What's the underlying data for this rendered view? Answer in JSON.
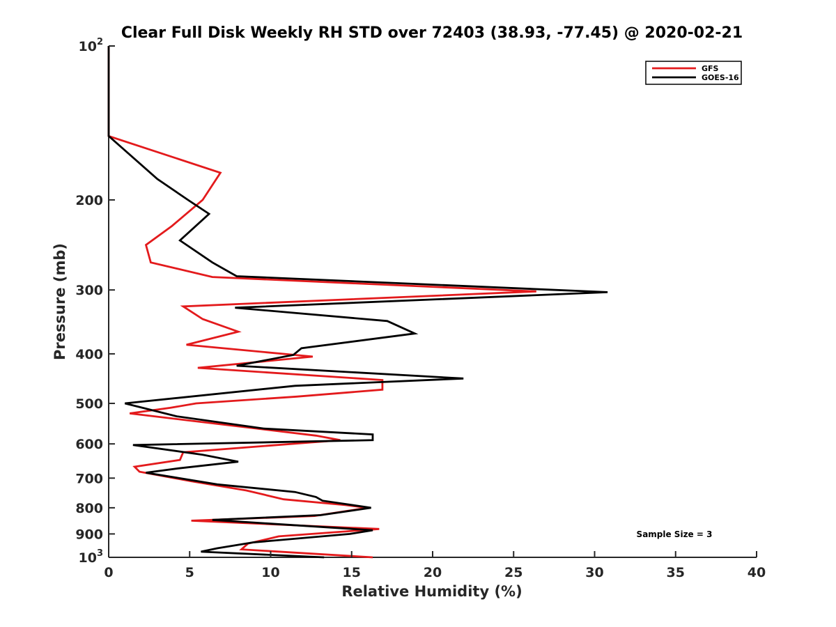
{
  "chart_data": {
    "type": "line",
    "title": "Clear Full Disk Weekly RH STD over 72403 (38.93, -77.45) @ 2020-02-21",
    "xlabel": "Relative Humidity (%)",
    "ylabel": "Pressure (mb)",
    "xlim": [
      0,
      40
    ],
    "ylim": [
      100,
      1000
    ],
    "y_scale": "log",
    "y_reversed": true,
    "grid": false,
    "legend_position": "top-right",
    "x_ticks": [
      0,
      5,
      10,
      15,
      20,
      25,
      30,
      35,
      40
    ],
    "x_tick_labels": [
      "0",
      "5",
      "10",
      "15",
      "20",
      "25",
      "30",
      "35",
      "40"
    ],
    "y_ticks": [
      100,
      200,
      300,
      400,
      500,
      600,
      700,
      800,
      900,
      1000
    ],
    "y_tick_labels": [
      {
        "base": "10",
        "exp": "2"
      },
      {
        "base": "200",
        "exp": ""
      },
      {
        "base": "300",
        "exp": ""
      },
      {
        "base": "400",
        "exp": ""
      },
      {
        "base": "500",
        "exp": ""
      },
      {
        "base": "600",
        "exp": ""
      },
      {
        "base": "700",
        "exp": ""
      },
      {
        "base": "800",
        "exp": ""
      },
      {
        "base": "900",
        "exp": ""
      },
      {
        "base": "10",
        "exp": "3"
      }
    ],
    "annotation": "Sample Size = 3",
    "series": [
      {
        "name": "GFS",
        "color": "#e31a1c",
        "points": [
          [
            0,
            100
          ],
          [
            0,
            150
          ],
          [
            6.9,
            177
          ],
          [
            5.8,
            200
          ],
          [
            3.9,
            225
          ],
          [
            2.3,
            245
          ],
          [
            2.6,
            265
          ],
          [
            6.4,
            283
          ],
          [
            26.4,
            302
          ],
          [
            4.6,
            323
          ],
          [
            5.8,
            342
          ],
          [
            8.0,
            362
          ],
          [
            4.8,
            384
          ],
          [
            12.6,
            405
          ],
          [
            5.5,
            426
          ],
          [
            16.9,
            450
          ],
          [
            16.9,
            470
          ],
          [
            11.6,
            485
          ],
          [
            5.4,
            500
          ],
          [
            3.8,
            510
          ],
          [
            1.3,
            523
          ],
          [
            12.8,
            578
          ],
          [
            14.3,
            590
          ],
          [
            4.6,
            623
          ],
          [
            4.4,
            645
          ],
          [
            1.6,
            665
          ],
          [
            1.9,
            680
          ],
          [
            5.1,
            710
          ],
          [
            8.5,
            740
          ],
          [
            10.8,
            770
          ],
          [
            14.6,
            790
          ],
          [
            16.0,
            800
          ],
          [
            12.7,
            830
          ],
          [
            5.1,
            848
          ],
          [
            16.7,
            880
          ],
          [
            10.5,
            910
          ],
          [
            8.6,
            940
          ],
          [
            8.2,
            965
          ],
          [
            16.3,
            1000
          ]
        ]
      },
      {
        "name": "GOES-16",
        "color": "#000000",
        "points": [
          [
            0,
            100
          ],
          [
            0,
            150
          ],
          [
            3.0,
            182
          ],
          [
            4.9,
            200
          ],
          [
            6.2,
            213
          ],
          [
            4.4,
            240
          ],
          [
            6.4,
            265
          ],
          [
            7.9,
            282
          ],
          [
            30.8,
            303
          ],
          [
            7.8,
            325
          ],
          [
            17.2,
            345
          ],
          [
            18.9,
            365
          ],
          [
            11.9,
            390
          ],
          [
            11.4,
            402
          ],
          [
            7.9,
            422
          ],
          [
            21.9,
            447
          ],
          [
            11.5,
            462
          ],
          [
            1.0,
            500
          ],
          [
            4.2,
            530
          ],
          [
            9.6,
            560
          ],
          [
            16.3,
            575
          ],
          [
            16.3,
            590
          ],
          [
            1.5,
            603
          ],
          [
            5.8,
            630
          ],
          [
            8.0,
            650
          ],
          [
            4.3,
            670
          ],
          [
            2.3,
            683
          ],
          [
            6.7,
            720
          ],
          [
            11.5,
            745
          ],
          [
            12.8,
            762
          ],
          [
            13.2,
            775
          ],
          [
            16.2,
            800
          ],
          [
            13.1,
            827
          ],
          [
            6.4,
            845
          ],
          [
            16.3,
            885
          ],
          [
            14.9,
            900
          ],
          [
            8.9,
            935
          ],
          [
            6.7,
            960
          ],
          [
            5.7,
            975
          ],
          [
            13.3,
            1000
          ]
        ]
      }
    ]
  }
}
